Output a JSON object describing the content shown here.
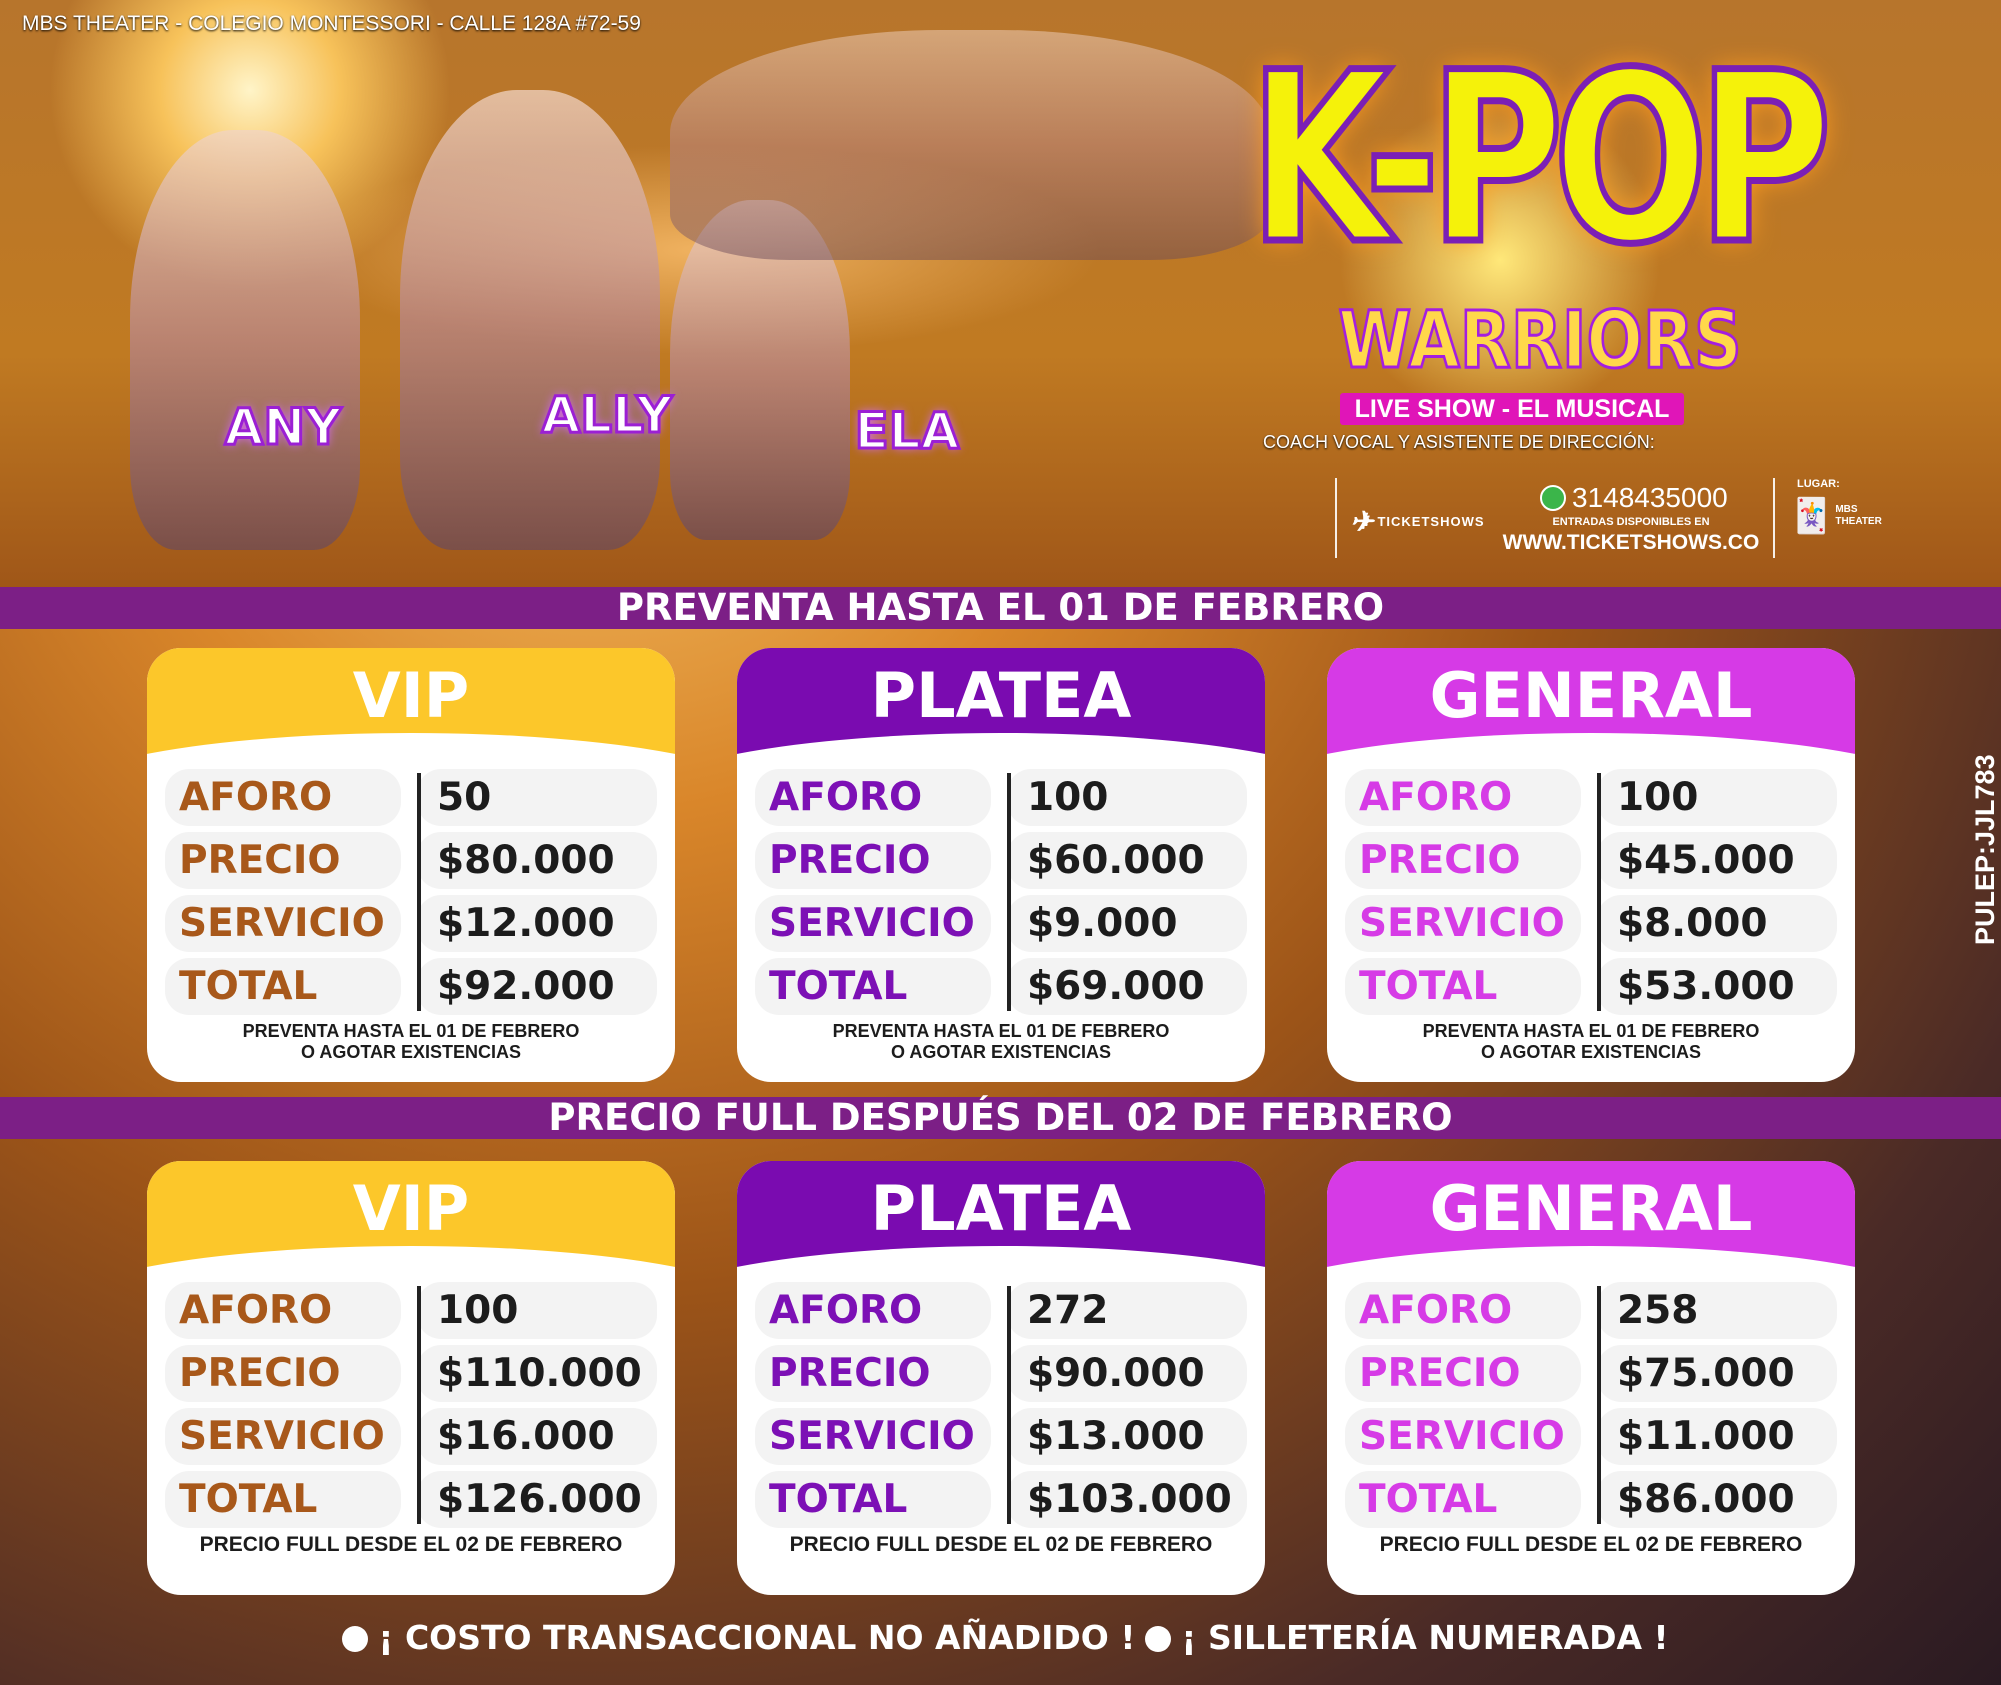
{
  "header": {
    "location": "MBS THEATER - COLEGIO MONTESSORI - CALLE 128A #72-59",
    "title": "K-POP",
    "subtitle": "WARRIORS",
    "tagline": "LIVE SHOW - EL MUSICAL",
    "coach": "COACH VOCAL Y ASISTENTE DE DIRECCIÓN:",
    "characters": [
      "ANY",
      "ALLY",
      "ELA"
    ]
  },
  "sponsors": {
    "ticketshows": "TICKETSHOWS",
    "phone": "3148435000",
    "available": "ENTRADAS DISPONIBLES EN",
    "website": "WWW.TICKETSHOWS.CO",
    "venue_label": "LUGAR:",
    "venue": "MBS THEATER"
  },
  "colors": {
    "vip": "#fcc72a",
    "platea": "#7a0bb0",
    "general": "#d63ae6",
    "vip_label": "#a8581a",
    "platea_label": "#7c10b5",
    "general_label": "#d63be6",
    "banner": "#7c1f86"
  },
  "labels": [
    "AFORO",
    "PRECIO",
    "SERVICIO",
    "TOTAL"
  ],
  "presale": {
    "banner": "PREVENTA HASTA EL 01 DE FEBRERO",
    "footer": [
      "PREVENTA HASTA EL 01 DE FEBRERO",
      "O AGOTAR EXISTENCIAS"
    ],
    "cards": [
      {
        "name": "VIP",
        "values": [
          "50",
          "$80.000",
          "$12.000",
          "$92.000"
        ]
      },
      {
        "name": "PLATEA",
        "values": [
          "100",
          "$60.000",
          "$9.000",
          "$69.000"
        ]
      },
      {
        "name": "GENERAL",
        "values": [
          "100",
          "$45.000",
          "$8.000",
          "$53.000"
        ]
      }
    ]
  },
  "full": {
    "banner": "PRECIO FULL DESPUÉS DEL 02 DE FEBRERO",
    "footer": [
      "PRECIO FULL DESDE EL 02 DE FEBRERO"
    ],
    "cards": [
      {
        "name": "VIP",
        "values": [
          "100",
          "$110.000",
          "$16.000",
          "$126.000"
        ]
      },
      {
        "name": "PLATEA",
        "values": [
          "272",
          "$90.000",
          "$13.000",
          "$103.000"
        ]
      },
      {
        "name": "GENERAL",
        "values": [
          "258",
          "$75.000",
          "$11.000",
          "$86.000"
        ]
      }
    ]
  },
  "pulep": "PULEP:JJL783",
  "notes": [
    "¡ COSTO TRANSACCIONAL NO AÑADIDO !",
    "¡ SILLETERÍA NUMERADA !"
  ]
}
